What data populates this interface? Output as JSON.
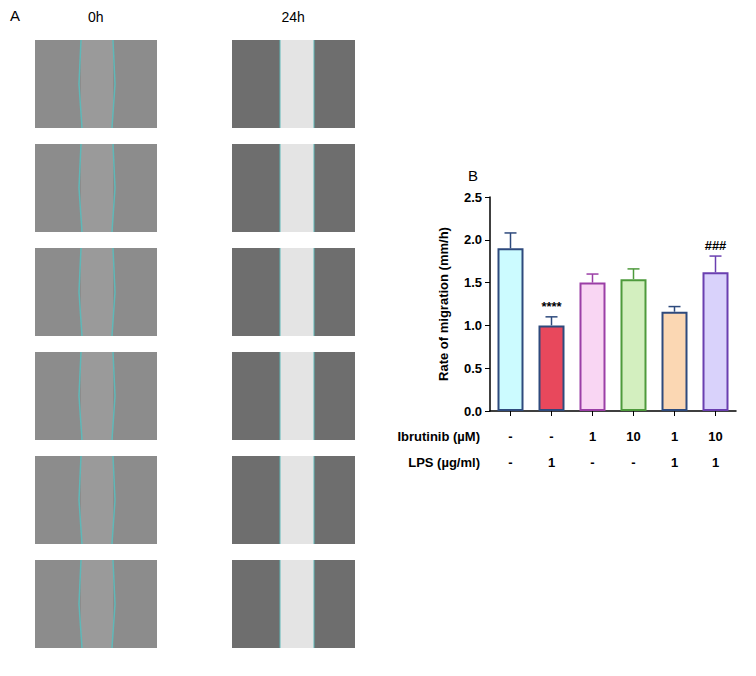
{
  "panel_a": {
    "label": "A",
    "columns": [
      "0h",
      "24h"
    ]
  },
  "chart_data": {
    "label": "B",
    "type": "bar",
    "y_label": "Rate of migration (mm/h)",
    "categories": [
      null,
      null,
      null,
      null,
      null,
      null
    ],
    "values": [
      1.9,
      1.0,
      1.5,
      1.54,
      1.16,
      1.62
    ],
    "errors": [
      0.18,
      0.1,
      0.1,
      0.12,
      0.06,
      0.19
    ],
    "colors": [
      "#ccfbff",
      "#e8485c",
      "#f9d6f3",
      "#d3efbf",
      "#fbd7b3",
      "#d9d2fb"
    ],
    "significance": [
      null,
      "****",
      null,
      null,
      null,
      "###"
    ],
    "conditions": [
      {
        "name": "Ibrutinib (µM)",
        "values": [
          "-",
          "-",
          "1",
          "10",
          "1",
          "10"
        ]
      },
      {
        "name": "LPS (µg/ml)",
        "values": [
          "-",
          "1",
          "-",
          "-",
          "1",
          "1"
        ]
      }
    ],
    "ylim": [
      0,
      2.5
    ],
    "yticks": [
      {
        "value": 0,
        "label": "0.0"
      },
      {
        "value": 0.5,
        "label": "0.5"
      },
      {
        "value": 1,
        "label": "1.0"
      },
      {
        "value": 1.5,
        "label": "1.5"
      },
      {
        "value": 2,
        "label": "2.0"
      },
      {
        "value": 2.5,
        "label": "2.5"
      }
    ],
    "grid": false
  }
}
